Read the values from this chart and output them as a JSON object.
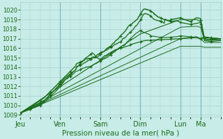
{
  "bg_color": "#c8ece8",
  "grid_color": "#a8d4cc",
  "line_color": "#1a6b1a",
  "xlabel": "Pression niveau de la mer( hPa )",
  "xlabel_color": "#1a6b1a",
  "tick_color": "#1a6b1a",
  "ylim": [
    1008.8,
    1020.8
  ],
  "yticks": [
    1009,
    1010,
    1011,
    1012,
    1013,
    1014,
    1015,
    1016,
    1017,
    1018,
    1019,
    1020
  ],
  "day_labels": [
    "Jeu",
    "Ven",
    "Sam",
    "Dim",
    "Lun",
    "Ma"
  ],
  "day_positions": [
    0,
    0.2,
    0.4,
    0.6,
    0.8,
    0.9
  ],
  "xlim": [
    0,
    1.0
  ]
}
